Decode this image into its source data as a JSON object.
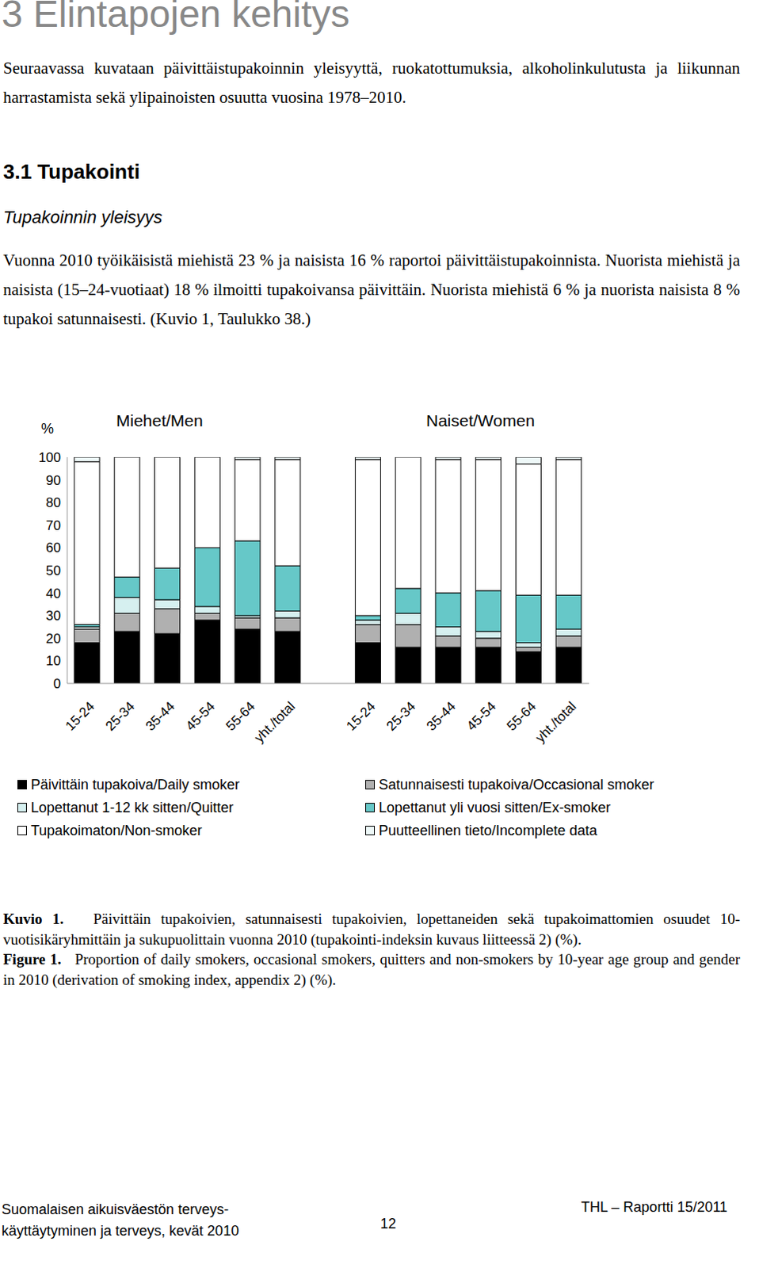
{
  "header": {
    "title": "3 Elintapojen kehitys"
  },
  "intro": "Seuraavassa kuvataan päivittäistupakoinnin yleisyyttä, ruokatottumuksia, alkoholinkulutusta ja liikunnan harrastamista sekä ylipainoisten osuutta vuosina 1978–2010.",
  "section": {
    "title": "3.1 Tupakointi",
    "subtitle": "Tupakoinnin yleisyys",
    "text": "Vuonna 2010 työikäisistä miehistä 23 % ja naisista 16 % raportoi päivittäistupakoinnista. Nuorista miehistä ja naisista (15–24-vuotiaat) 18 % ilmoitti tupakoivansa päivittäin. Nuorista miehistä 6 % ja nuorista naisista 8 % tupakoi satunnaisesti. (Kuvio 1, Taulukko 38.)"
  },
  "chart_data": {
    "type": "bar",
    "stacked": true,
    "y_label": "%",
    "annotations": [
      "Miehet/Men",
      "Naiset/Women"
    ],
    "categories": [
      "15-24",
      "25-34",
      "35-44",
      "45-54",
      "55-64",
      "yht./total",
      null,
      "15-24",
      "25-34",
      "35-44",
      "45-54",
      "55-64",
      "yht./total"
    ],
    "series": [
      {
        "name": "Päivittäin tupakoiva/Daily smoker",
        "color": "#000000",
        "values": [
          18,
          23,
          22,
          28,
          24,
          23,
          null,
          18,
          16,
          16,
          16,
          14,
          16
        ]
      },
      {
        "name": "Satunnaisesti tupakoiva/Occasional smoker",
        "color": "#b0b0b0",
        "values": [
          6,
          8,
          11,
          3,
          5,
          6,
          null,
          8,
          10,
          5,
          4,
          2,
          5
        ]
      },
      {
        "name": "Lopettanut 1-12 kk sitten/Quitter",
        "color": "#d6f0f0",
        "values": [
          1,
          7,
          4,
          3,
          1,
          3,
          null,
          2,
          5,
          4,
          3,
          2,
          3
        ]
      },
      {
        "name": "Lopettanut yli vuosi sitten/Ex-smoker",
        "color": "#66c8c8",
        "values": [
          1,
          9,
          14,
          26,
          33,
          20,
          null,
          2,
          11,
          15,
          18,
          21,
          15
        ]
      },
      {
        "name": "Tupakoimaton/Non-smoker",
        "color": "#ffffff",
        "values": [
          72,
          53,
          49,
          40,
          36,
          47,
          null,
          69,
          58,
          59,
          58,
          58,
          60
        ]
      },
      {
        "name": "Puutteellinen tieto/Incomplete data",
        "color": "#eef8f8",
        "values": [
          2,
          0,
          0,
          0,
          1,
          1,
          null,
          1,
          0,
          1,
          1,
          3,
          1
        ]
      }
    ],
    "ylim": [
      0,
      100
    ],
    "yticks": [
      0,
      10,
      20,
      30,
      40,
      50,
      60,
      70,
      80,
      90,
      100
    ],
    "grid": false,
    "legend": "bottom"
  },
  "caption": {
    "fi_label": "Kuvio 1.",
    "fi_text": "Päivittäin tupakoivien, satunnaisesti tupakoivien, lopettaneiden sekä tupakoimattomien osuudet 10-vuotisikäryhmittäin ja sukupuolittain vuonna 2010 (tupakointi-indeksin kuvaus liitteessä 2) (%).",
    "en_label": "Figure 1.",
    "en_text": "Proportion of daily smokers, occasional smokers, quitters and non-smokers by 10-year age group and gender in 2010 (derivation of smoking index, appendix 2) (%)."
  },
  "footer": {
    "left": [
      "Suomalaisen aikuisväestön terveys-",
      "käyttäytyminen ja terveys, kevät 2010"
    ],
    "page": "12",
    "right": "THL – Raportti 15/2011"
  }
}
